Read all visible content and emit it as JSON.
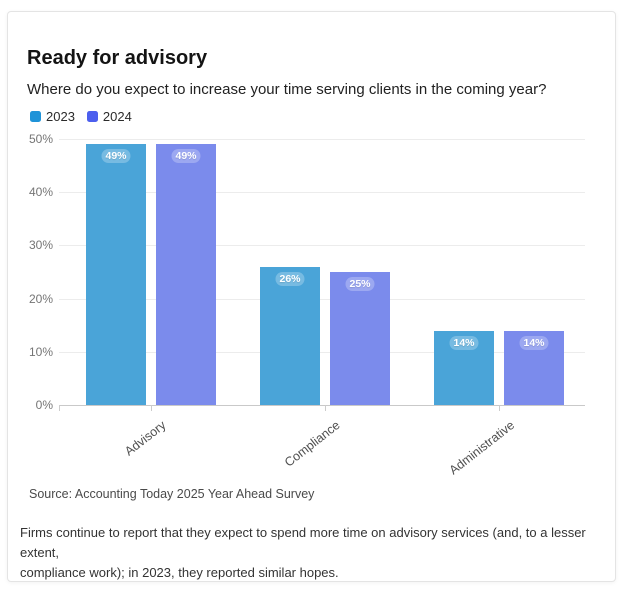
{
  "card": {
    "title": "Ready for advisory",
    "subtitle": "Where do you expect to increase your time serving clients in the coming year?",
    "source": "Source: Accounting Today 2025 Year Ahead Survey",
    "footnote_line1": "Firms continue to report that they expect to spend more time on advisory services (and, to a lesser extent,",
    "footnote_line2": "compliance work); in 2023, they reported similar hopes."
  },
  "legend": [
    {
      "label": "2023",
      "color": "#1f93d8"
    },
    {
      "label": "2024",
      "color": "#4c5fee"
    }
  ],
  "chart_data": {
    "type": "bar",
    "title": "Ready for advisory",
    "subtitle": "Where do you expect to increase your time serving clients in the coming year?",
    "categories": [
      "Advisory",
      "Compliance",
      "Administrative"
    ],
    "series": [
      {
        "name": "2023",
        "color": "#4aa4d8",
        "values": [
          49,
          26,
          14
        ]
      },
      {
        "name": "2024",
        "color": "#7b8bec",
        "values": [
          49,
          25,
          14
        ]
      }
    ],
    "value_labels": [
      [
        "49%",
        "26%",
        "14%"
      ],
      [
        "49%",
        "25%",
        "14%"
      ]
    ],
    "unit": "%",
    "ylim": [
      0,
      50
    ],
    "yticks": [
      "0%",
      "10%",
      "20%",
      "30%",
      "40%",
      "50%"
    ],
    "grid": "horizontal",
    "legend_position": "top-left",
    "xlabel": "",
    "ylabel": "",
    "source": "Source: Accounting Today 2025 Year Ahead Survey",
    "colors": {
      "grid": "#ececec",
      "axis_zero_line": "#c9c9c9",
      "axis_text": "#757575",
      "bar_label_text": "#ffffff"
    }
  }
}
